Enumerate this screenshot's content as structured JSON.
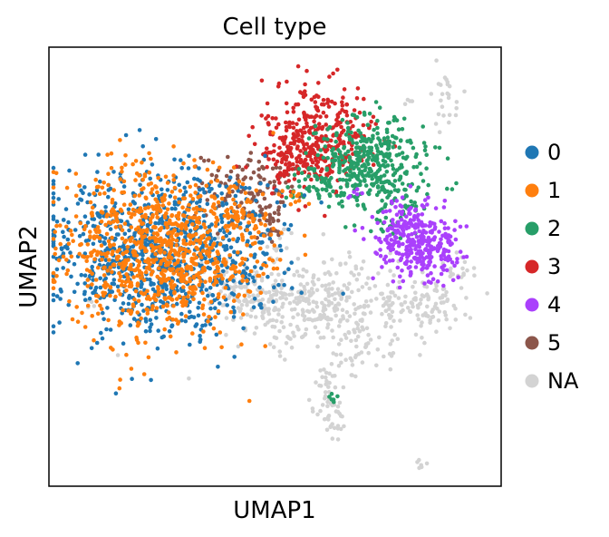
{
  "chart_data": {
    "type": "scatter",
    "title": "Cell type",
    "xlabel": "UMAP1",
    "ylabel": "UMAP2",
    "xlim": [
      0,
      100
    ],
    "ylim": [
      0,
      100
    ],
    "grid": false,
    "ticks": false,
    "legend_placement": "right",
    "series": [
      {
        "name": "NA",
        "color": "#d3d3d3",
        "clusters": [
          {
            "cx": 58,
            "cy": 42,
            "sx": 10,
            "sy": 5,
            "n": 330
          },
          {
            "cx": 43,
            "cy": 44,
            "sx": 5,
            "sy": 3,
            "n": 90
          },
          {
            "cx": 82,
            "cy": 41,
            "sx": 5,
            "sy": 3.5,
            "n": 110
          },
          {
            "cx": 69,
            "cy": 33,
            "sx": 3,
            "sy": 4,
            "n": 45
          },
          {
            "cx": 62,
            "cy": 21,
            "sx": 1.8,
            "sy": 4.5,
            "n": 45
          },
          {
            "cx": 63,
            "cy": 14,
            "sx": 1.5,
            "sy": 1.5,
            "n": 15
          },
          {
            "cx": 88,
            "cy": 90,
            "sx": 1.5,
            "sy": 4,
            "n": 25
          },
          {
            "cx": 79,
            "cy": 88,
            "sx": 1,
            "sy": 0.5,
            "n": 4
          },
          {
            "cx": 82,
            "cy": 5,
            "sx": 0.6,
            "sy": 0.4,
            "n": 6
          },
          {
            "cx": 90,
            "cy": 50,
            "sx": 2,
            "sy": 3,
            "n": 18
          },
          {
            "cx": 51,
            "cy": 56,
            "sx": 1.8,
            "sy": 2,
            "n": 10
          },
          {
            "cx": 9,
            "cy": 41,
            "sx": 1,
            "sy": 1,
            "n": 4
          }
        ]
      },
      {
        "name": "5",
        "color": "#8c564b",
        "clusters": [
          {
            "cx": 43,
            "cy": 68,
            "sx": 5,
            "sy": 4,
            "n": 110
          },
          {
            "cx": 49,
            "cy": 59,
            "sx": 1.5,
            "sy": 3,
            "n": 25
          }
        ]
      },
      {
        "name": "3",
        "color": "#d62728",
        "clusters": [
          {
            "cx": 59,
            "cy": 79,
            "sx": 6,
            "sy": 5.5,
            "n": 380
          },
          {
            "cx": 54,
            "cy": 73,
            "sx": 3,
            "sy": 2,
            "n": 30
          }
        ]
      },
      {
        "name": "2",
        "color": "#279e68",
        "clusters": [
          {
            "cx": 71,
            "cy": 74,
            "sx": 6.5,
            "sy": 5,
            "n": 380
          },
          {
            "cx": 60,
            "cy": 68,
            "sx": 4,
            "sy": 2,
            "n": 40
          },
          {
            "cx": 76,
            "cy": 63,
            "sx": 3,
            "sy": 3,
            "n": 45
          },
          {
            "cx": 63,
            "cy": 21,
            "sx": 0.6,
            "sy": 1.2,
            "n": 6
          }
        ]
      },
      {
        "name": "4",
        "color": "#aa40fc",
        "clusters": [
          {
            "cx": 82,
            "cy": 55,
            "sx": 4.5,
            "sy": 4,
            "n": 320
          },
          {
            "cx": 77,
            "cy": 60,
            "sx": 2,
            "sy": 2,
            "n": 30
          },
          {
            "cx": 67,
            "cy": 67,
            "sx": 1,
            "sy": 1,
            "n": 6
          }
        ]
      },
      {
        "name": "0",
        "color": "#1f77b4",
        "clusters": [
          {
            "cx": 24,
            "cy": 53,
            "sx": 12,
            "sy": 9.5,
            "n": 950
          }
        ]
      },
      {
        "name": "1",
        "color": "#ff7f0e",
        "clusters": [
          {
            "cx": 25,
            "cy": 54,
            "sx": 11,
            "sy": 9,
            "n": 900
          },
          {
            "cx": 43,
            "cy": 62,
            "sx": 3,
            "sy": 3,
            "n": 35
          },
          {
            "cx": 54,
            "cy": 66,
            "sx": 1.5,
            "sy": 1,
            "n": 8
          }
        ]
      }
    ],
    "legend": [
      {
        "label": "0",
        "color": "#1f77b4"
      },
      {
        "label": "1",
        "color": "#ff7f0e"
      },
      {
        "label": "2",
        "color": "#279e68"
      },
      {
        "label": "3",
        "color": "#d62728"
      },
      {
        "label": "4",
        "color": "#aa40fc"
      },
      {
        "label": "5",
        "color": "#8c564b"
      },
      {
        "label": "NA",
        "color": "#d3d3d3"
      }
    ]
  }
}
